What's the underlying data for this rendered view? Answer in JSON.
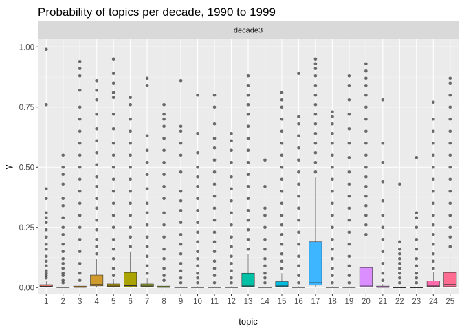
{
  "chart_data": {
    "type": "box",
    "title": "Probability of topics per decade, 1990 to 1999",
    "facet_label": "decade3",
    "xlabel": "topic",
    "ylabel": "γ",
    "ylim": [
      -0.025,
      1.035
    ],
    "yticks": [
      0.0,
      0.25,
      0.5,
      0.75,
      1.0
    ],
    "ytick_labels": [
      "0.00",
      "0.25",
      "0.50",
      "0.75",
      "1.00"
    ],
    "categories": [
      "1",
      "2",
      "3",
      "4",
      "5",
      "6",
      "7",
      "8",
      "9",
      "10",
      "11",
      "12",
      "13",
      "14",
      "15",
      "16",
      "17",
      "18",
      "19",
      "20",
      "21",
      "22",
      "23",
      "24",
      "25"
    ],
    "colors": {
      "panel_bg": "#ebebeb",
      "strip_bg": "#d9d9d9",
      "grid_major": "#ffffff",
      "grid_minor": "#f5f5f5",
      "outlier": "#333333",
      "box_outline": "#333333",
      "tick": "#333333"
    },
    "boxes": [
      {
        "topic": "1",
        "color": "#F8766D",
        "q1": 0.002,
        "median": 0.005,
        "q3": 0.012,
        "whisker_high": 0.027,
        "outliers": [
          0.04,
          0.05,
          0.06,
          0.07,
          0.09,
          0.11,
          0.13,
          0.16,
          0.18,
          0.21,
          0.24,
          0.27,
          0.29,
          0.31,
          0.37,
          0.41,
          0.76,
          0.99
        ]
      },
      {
        "topic": "2",
        "color": "#EE8043",
        "q1": 0.0,
        "median": 0.001,
        "q3": 0.002,
        "whisker_high": 0.004,
        "outliers": [
          0.02,
          0.03,
          0.05,
          0.06,
          0.08,
          0.1,
          0.12,
          0.15,
          0.18,
          0.22,
          0.25,
          0.29,
          0.34,
          0.37,
          0.43,
          0.47,
          0.5,
          0.55
        ]
      },
      {
        "topic": "3",
        "color": "#E08B00",
        "q1": 0.001,
        "median": 0.002,
        "q3": 0.006,
        "whisker_high": 0.014,
        "outliers": [
          0.03,
          0.06,
          0.1,
          0.15,
          0.2,
          0.25,
          0.3,
          0.35,
          0.4,
          0.45,
          0.5,
          0.55,
          0.6,
          0.65,
          0.7,
          0.75,
          0.82,
          0.88,
          0.91,
          0.94
        ]
      },
      {
        "topic": "4",
        "color": "#D09B2C",
        "q1": 0.007,
        "median": 0.012,
        "q3": 0.052,
        "whisker_high": 0.12,
        "outliers": [
          0.14,
          0.17,
          0.2,
          0.24,
          0.28,
          0.33,
          0.37,
          0.42,
          0.46,
          0.51,
          0.56,
          0.61,
          0.66,
          0.72,
          0.78,
          0.82,
          0.86
        ]
      },
      {
        "topic": "5",
        "color": "#BD9D00",
        "q1": 0.002,
        "median": 0.006,
        "q3": 0.015,
        "whisker_high": 0.035,
        "outliers": [
          0.05,
          0.08,
          0.12,
          0.16,
          0.2,
          0.25,
          0.3,
          0.35,
          0.4,
          0.45,
          0.5,
          0.55,
          0.6,
          0.66,
          0.72,
          0.79,
          0.81,
          0.85,
          0.89,
          0.95
        ]
      },
      {
        "topic": "6",
        "color": "#ABA300",
        "q1": 0.003,
        "median": 0.008,
        "q3": 0.063,
        "whisker_high": 0.15,
        "outliers": [
          0.17,
          0.21,
          0.25,
          0.3,
          0.35,
          0.4,
          0.45,
          0.5,
          0.55,
          0.6,
          0.65,
          0.7,
          0.76,
          0.79
        ]
      },
      {
        "topic": "7",
        "color": "#9AA92C",
        "q1": 0.002,
        "median": 0.006,
        "q3": 0.015,
        "whisker_high": 0.04,
        "outliers": [
          0.06,
          0.09,
          0.13,
          0.17,
          0.21,
          0.26,
          0.31,
          0.35,
          0.41,
          0.47,
          0.52,
          0.57,
          0.63,
          0.84,
          0.87
        ]
      },
      {
        "topic": "8",
        "color": "#7CAE00",
        "q1": 0.001,
        "median": 0.002,
        "q3": 0.006,
        "whisker_high": 0.014,
        "outliers": [
          0.03,
          0.05,
          0.08,
          0.12,
          0.16,
          0.21,
          0.26,
          0.31,
          0.37,
          0.42,
          0.47,
          0.52,
          0.57,
          0.62,
          0.67,
          0.7,
          0.72,
          0.76
        ]
      },
      {
        "topic": "9",
        "color": "#5BB300",
        "q1": 0.0,
        "median": 0.001,
        "q3": 0.002,
        "whisker_high": 0.005,
        "outliers": [
          0.02,
          0.04,
          0.07,
          0.1,
          0.14,
          0.18,
          0.22,
          0.27,
          0.32,
          0.36,
          0.4,
          0.48,
          0.55,
          0.6,
          0.65,
          0.67,
          0.86
        ]
      },
      {
        "topic": "10",
        "color": "#00B81F",
        "q1": 0.0,
        "median": 0.001,
        "q3": 0.002,
        "whisker_high": 0.005,
        "outliers": [
          0.02,
          0.04,
          0.06,
          0.09,
          0.12,
          0.15,
          0.19,
          0.23,
          0.27,
          0.32,
          0.37,
          0.42,
          0.46,
          0.5,
          0.56,
          0.64,
          0.8
        ]
      },
      {
        "topic": "11",
        "color": "#00BC59",
        "q1": 0.0,
        "median": 0.001,
        "q3": 0.002,
        "whisker_high": 0.005,
        "outliers": [
          0.02,
          0.05,
          0.08,
          0.11,
          0.15,
          0.19,
          0.23,
          0.28,
          0.33,
          0.38,
          0.43,
          0.48,
          0.53,
          0.58,
          0.62,
          0.68,
          0.75,
          0.8
        ]
      },
      {
        "topic": "12",
        "color": "#00BE81",
        "q1": 0.0,
        "median": 0.001,
        "q3": 0.002,
        "whisker_high": 0.005,
        "outliers": [
          0.02,
          0.04,
          0.07,
          0.1,
          0.13,
          0.17,
          0.21,
          0.26,
          0.31,
          0.36,
          0.41,
          0.46,
          0.52,
          0.57,
          0.61,
          0.64
        ]
      },
      {
        "topic": "13",
        "color": "#00C0A6",
        "q1": 0.002,
        "median": 0.006,
        "q3": 0.06,
        "whisker_high": 0.14,
        "outliers": [
          0.16,
          0.2,
          0.24,
          0.28,
          0.32,
          0.37,
          0.42,
          0.47,
          0.52,
          0.57,
          0.62,
          0.67,
          0.72,
          0.76,
          0.8,
          0.84,
          0.88
        ]
      },
      {
        "topic": "14",
        "color": "#00BFC4",
        "q1": 0.0,
        "median": 0.001,
        "q3": 0.002,
        "whisker_high": 0.004,
        "outliers": [
          0.02,
          0.04,
          0.06,
          0.09,
          0.12,
          0.16,
          0.2,
          0.25,
          0.3,
          0.33,
          0.42,
          0.53
        ]
      },
      {
        "topic": "15",
        "color": "#00BCE0",
        "q1": 0.002,
        "median": 0.006,
        "q3": 0.025,
        "whisker_high": 0.06,
        "outliers": [
          0.08,
          0.11,
          0.14,
          0.18,
          0.22,
          0.26,
          0.3,
          0.35,
          0.4,
          0.45,
          0.5,
          0.55,
          0.6,
          0.65,
          0.7,
          0.75,
          0.78,
          0.81
        ]
      },
      {
        "topic": "16",
        "color": "#00B4F0",
        "q1": 0.0,
        "median": 0.001,
        "q3": 0.002,
        "whisker_high": 0.005,
        "outliers": [
          0.02,
          0.05,
          0.09,
          0.13,
          0.18,
          0.23,
          0.28,
          0.33,
          0.38,
          0.43,
          0.48,
          0.53,
          0.58,
          0.63,
          0.68,
          0.71,
          0.89
        ]
      },
      {
        "topic": "17",
        "color": "#3DB5FF",
        "q1": 0.01,
        "median": 0.02,
        "q3": 0.19,
        "whisker_high": 0.46,
        "outliers": [
          0.48,
          0.52,
          0.56,
          0.6,
          0.64,
          0.68,
          0.72,
          0.76,
          0.8,
          0.84,
          0.88,
          0.91,
          0.93,
          0.95
        ]
      },
      {
        "topic": "18",
        "color": "#619CFF",
        "q1": 0.0,
        "median": 0.001,
        "q3": 0.002,
        "whisker_high": 0.005,
        "outliers": [
          0.02,
          0.05,
          0.08,
          0.12,
          0.16,
          0.2,
          0.25,
          0.3,
          0.35,
          0.4,
          0.45,
          0.5,
          0.55,
          0.6,
          0.64,
          0.68,
          0.71,
          0.73
        ]
      },
      {
        "topic": "19",
        "color": "#8F91FF",
        "q1": 0.0,
        "median": 0.001,
        "q3": 0.002,
        "whisker_high": 0.005,
        "outliers": [
          0.02,
          0.05,
          0.09,
          0.13,
          0.18,
          0.23,
          0.28,
          0.33,
          0.38,
          0.43,
          0.48,
          0.54,
          0.6,
          0.66,
          0.72,
          0.78,
          0.84,
          0.88
        ]
      },
      {
        "topic": "20",
        "color": "#DB8EFF",
        "q1": 0.004,
        "median": 0.01,
        "q3": 0.083,
        "whisker_high": 0.2,
        "outliers": [
          0.22,
          0.26,
          0.3,
          0.34,
          0.38,
          0.42,
          0.46,
          0.5,
          0.55,
          0.6,
          0.65,
          0.7,
          0.75,
          0.8,
          0.84,
          0.87,
          0.9,
          0.93
        ]
      },
      {
        "topic": "21",
        "color": "#E76BF3",
        "q1": 0.001,
        "median": 0.002,
        "q3": 0.006,
        "whisker_high": 0.014,
        "outliers": [
          0.03,
          0.06,
          0.1,
          0.15,
          0.2,
          0.25,
          0.3,
          0.36,
          0.44,
          0.52,
          0.6,
          0.78
        ]
      },
      {
        "topic": "22",
        "color": "#F763E0",
        "q1": 0.0,
        "median": 0.0005,
        "q3": 0.001,
        "whisker_high": 0.003,
        "outliers": [
          0.02,
          0.04,
          0.06,
          0.08,
          0.1,
          0.12,
          0.14,
          0.16,
          0.19,
          0.43
        ]
      },
      {
        "topic": "23",
        "color": "#FF66C8",
        "q1": 0.0,
        "median": 0.0005,
        "q3": 0.001,
        "whisker_high": 0.003,
        "outliers": [
          0.02,
          0.04,
          0.06,
          0.09,
          0.12,
          0.16,
          0.2,
          0.25,
          0.29,
          0.31,
          0.54
        ]
      },
      {
        "topic": "24",
        "color": "#FF69AE",
        "q1": 0.002,
        "median": 0.006,
        "q3": 0.028,
        "whisker_high": 0.065,
        "outliers": [
          0.08,
          0.11,
          0.14,
          0.18,
          0.22,
          0.26,
          0.3,
          0.35,
          0.4,
          0.45,
          0.5,
          0.55,
          0.6,
          0.65,
          0.7,
          0.77
        ]
      },
      {
        "topic": "25",
        "color": "#FF6C91",
        "q1": 0.004,
        "median": 0.012,
        "q3": 0.063,
        "whisker_high": 0.15,
        "outliers": [
          0.17,
          0.21,
          0.25,
          0.3,
          0.35,
          0.4,
          0.45,
          0.5,
          0.55,
          0.6,
          0.65,
          0.7,
          0.75,
          0.8,
          0.85,
          0.87
        ]
      }
    ]
  }
}
